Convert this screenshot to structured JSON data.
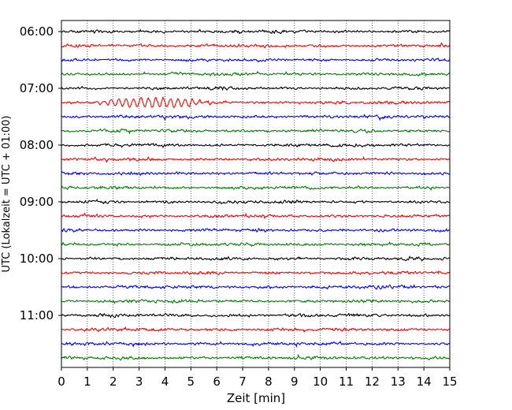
{
  "chart_data": {
    "type": "line",
    "title": "",
    "xlabel": "Zeit  [min]",
    "ylabel": "UTC (Lokalzeit = UTC + 01:00)",
    "xlim": [
      0,
      15
    ],
    "x_ticks": [
      "0",
      "1",
      "2",
      "3",
      "4",
      "5",
      "6",
      "7",
      "8",
      "9",
      "10",
      "11",
      "12",
      "13",
      "14",
      "15"
    ],
    "y_ticks": [
      "06:00",
      "07:00",
      "08:00",
      "09:00",
      "10:00",
      "11:00"
    ],
    "grid": "vertical dotted",
    "trace_interval_minutes": 15,
    "trace_start": "06:00",
    "trace_count": 24,
    "trace_colors": [
      "#000000",
      "#ff0000",
      "#0000ff",
      "#008000"
    ],
    "notable_event": {
      "trace_start": "07:15",
      "x_range_min": [
        1,
        6
      ],
      "description_shape": "larger amplitude oscillations"
    }
  }
}
